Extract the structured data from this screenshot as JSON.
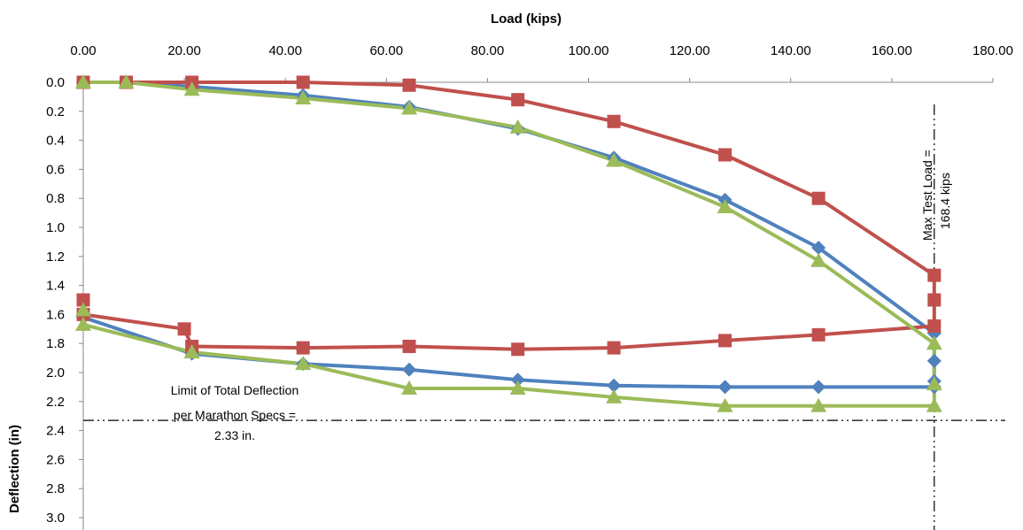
{
  "chart_data": {
    "type": "line",
    "xlabel": "Load (kips)",
    "ylabel": "Deflection (in)",
    "xlim": [
      0,
      180
    ],
    "ylim": [
      0,
      3.0
    ],
    "y_reversed": true,
    "x_axis_position": "top",
    "x_ticks": [
      "0.00",
      "20.00",
      "40.00",
      "60.00",
      "80.00",
      "100.00",
      "120.00",
      "140.00",
      "160.00",
      "180.00"
    ],
    "x_tick_values": [
      0,
      20,
      40,
      60,
      80,
      100,
      120,
      140,
      160,
      180
    ],
    "y_ticks": [
      "0.0",
      "0.2",
      "0.4",
      "0.6",
      "0.8",
      "1.0",
      "1.2",
      "1.4",
      "1.6",
      "1.8",
      "2.0",
      "2.2",
      "2.4",
      "2.6",
      "2.8",
      "3.0"
    ],
    "y_tick_values": [
      0,
      0.2,
      0.4,
      0.6,
      0.8,
      1.0,
      1.2,
      1.4,
      1.6,
      1.8,
      2.0,
      2.2,
      2.4,
      2.6,
      2.8,
      3.0
    ],
    "grid": false,
    "legend": "none",
    "series": [
      {
        "color": "#4f81bd",
        "marker": "diamond",
        "x": [
          0,
          8.5,
          21.5,
          43.5,
          64.5,
          86,
          105,
          127,
          145.5,
          168.4,
          168.4,
          168.4,
          168.4,
          145.5,
          127,
          105,
          86,
          64.5,
          43.5,
          21.5,
          0,
          0
        ],
        "y": [
          0,
          0,
          0.03,
          0.09,
          0.17,
          0.32,
          0.52,
          0.81,
          1.14,
          1.73,
          1.92,
          2.06,
          2.1,
          2.1,
          2.1,
          2.09,
          2.05,
          1.98,
          1.94,
          1.87,
          1.62,
          1.6
        ]
      },
      {
        "color": "#c0504d",
        "marker": "square",
        "x": [
          0,
          8.5,
          21.5,
          43.5,
          64.5,
          86,
          105,
          127,
          145.5,
          168.4,
          168.4,
          168.4,
          145.5,
          127,
          105,
          86,
          64.5,
          43.5,
          21.5,
          20,
          0,
          0
        ],
        "y": [
          0,
          0,
          0,
          0,
          0.02,
          0.12,
          0.27,
          0.5,
          0.8,
          1.33,
          1.5,
          1.68,
          1.74,
          1.78,
          1.83,
          1.84,
          1.82,
          1.83,
          1.82,
          1.7,
          1.6,
          1.5
        ]
      },
      {
        "color": "#9bbb59",
        "marker": "triangle",
        "x": [
          0,
          8.5,
          21.5,
          43.5,
          64.5,
          86,
          105,
          127,
          145.5,
          168.4,
          168.4,
          168.4,
          145.5,
          127,
          105,
          86,
          64.5,
          43.5,
          21.5,
          0,
          0
        ],
        "y": [
          0,
          0,
          0.05,
          0.11,
          0.18,
          0.31,
          0.54,
          0.86,
          1.23,
          1.8,
          2.08,
          2.23,
          2.23,
          2.23,
          2.17,
          2.11,
          2.11,
          1.94,
          1.86,
          1.67,
          1.57
        ]
      }
    ],
    "reference_lines": {
      "limit_y": 2.33,
      "max_load_x": 168.4
    },
    "annotations": {
      "limit_lines": [
        "Limit of Total Deflection",
        "per  Marathon Specs =",
        "2.33 in."
      ],
      "max_load_lines": [
        "Max Test Load =",
        "168.4 kips"
      ]
    }
  }
}
